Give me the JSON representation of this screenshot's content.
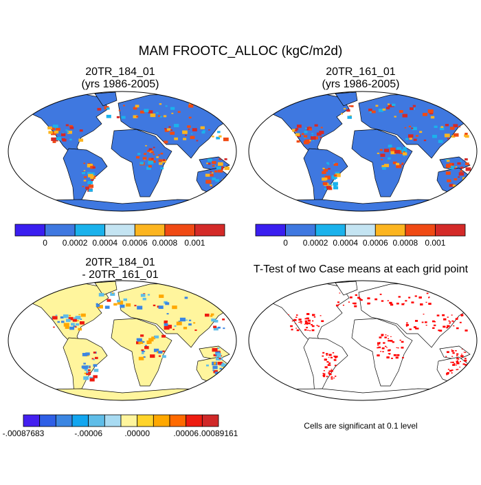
{
  "title": "MAM FROOTC_ALLOC (kgC/m2d)",
  "panels": [
    {
      "title": [
        "20TR_184_01",
        "(yrs 1986-2005)"
      ]
    },
    {
      "title": [
        "20TR_161_01",
        "(yrs 1986-2005)"
      ]
    },
    {
      "title": [
        "20TR_184_01",
        "- 20TR_161_01"
      ]
    },
    {
      "title": [
        "T-Test of two Case means at each grid point"
      ],
      "note": "Cells are significant at 0.1 level"
    }
  ],
  "colorbars": [
    {
      "colors": [
        "#3a1ef0",
        "#3f78e0",
        "#1bb2ec",
        "#c4e4f2",
        "#fcb520",
        "#f04a14",
        "#d42a28"
      ],
      "labels": [
        "0",
        "0.0002",
        "0.0004",
        "0.0006",
        "0.0008",
        "0.001"
      ]
    },
    {
      "colors": [
        "#3a1ef0",
        "#3f78e0",
        "#1bb2ec",
        "#c4e4f2",
        "#fcb520",
        "#f04a14",
        "#d42a28"
      ],
      "labels": [
        "0",
        "0.0002",
        "0.0004",
        "0.0006",
        "0.0008",
        "0.001"
      ]
    },
    {
      "colors": [
        "#4420f0",
        "#2f5fe6",
        "#3b86e2",
        "#12a6f0",
        "#5fbde8",
        "#a8dbf2",
        "#fff59d",
        "#ffd42a",
        "#ffa800",
        "#ff6a00",
        "#ee1c10",
        "#d02828"
      ],
      "labels": [
        "-.00087683",
        "-.00006",
        ".00000",
        ".00006",
        ".00089161"
      ]
    }
  ]
}
